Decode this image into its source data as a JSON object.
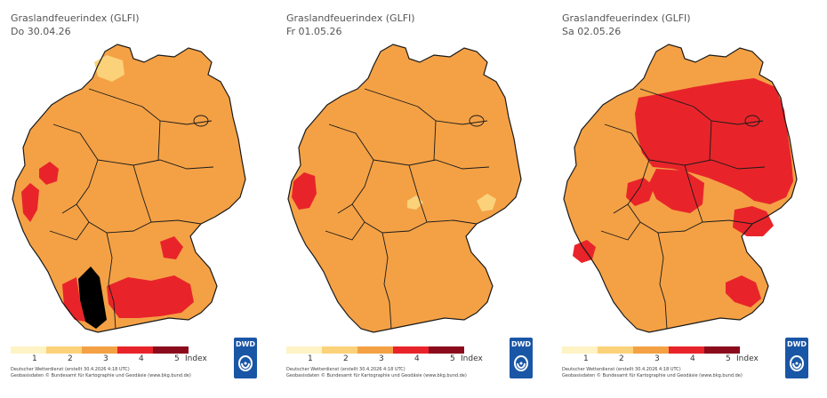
{
  "panels": [
    {
      "title": "Graslandfeuerindex (GLFI)",
      "date": "Do 30.04.26",
      "base_level": 3,
      "patches": [
        {
          "level": 2,
          "region": "schleswig-holstein-south"
        },
        {
          "level": 4,
          "region": "saarland-west"
        },
        {
          "level": 4,
          "region": "northrhine-west"
        },
        {
          "level": 5,
          "region": "upper-rhine"
        },
        {
          "level": 4,
          "region": "baden-wuerttemberg-south"
        },
        {
          "level": 4,
          "region": "bavaria-south-west"
        },
        {
          "level": 4,
          "region": "franconia-south"
        }
      ]
    },
    {
      "title": "Graslandfeuerindex (GLFI)",
      "date": "Fr 01.05.26",
      "base_level": 3,
      "patches": [
        {
          "level": 4,
          "region": "rhineland-west"
        },
        {
          "level": 2,
          "region": "thuringia-south"
        },
        {
          "level": 2,
          "region": "saxony-south"
        }
      ]
    },
    {
      "title": "Graslandfeuerindex (GLFI)",
      "date": "Sa 02.05.26",
      "base_level": 3,
      "patches": [
        {
          "level": 4,
          "region": "northeast-germany"
        },
        {
          "level": 4,
          "region": "central-germany"
        },
        {
          "level": 4,
          "region": "rhine-main"
        },
        {
          "level": 4,
          "region": "bavaria-east"
        },
        {
          "level": 4,
          "region": "saarland"
        },
        {
          "level": 4,
          "region": "bavaria-south-east"
        }
      ]
    }
  ],
  "legend": {
    "ticks": [
      "1",
      "2",
      "3",
      "4",
      "5"
    ],
    "index_label": "Index",
    "colors": [
      "#fef3c4",
      "#fbd27a",
      "#f4a145",
      "#e8242a",
      "#8b0a1c"
    ]
  },
  "credit_line_1": "Deutscher Wetterdienst  (erstellt 30.4.2026  4:18 UTC)",
  "credit_line_2": "Geobasisdaten © Bundesamt für Kartographie und Geodäsie  (www.bkg.bund.de)",
  "logo": {
    "text": "DWD",
    "color": "#1a56a6"
  },
  "map_colors": {
    "level2": "#fbd27a",
    "level3": "#f4a145",
    "level4": "#e8242a",
    "border": "#1a1a1a"
  }
}
